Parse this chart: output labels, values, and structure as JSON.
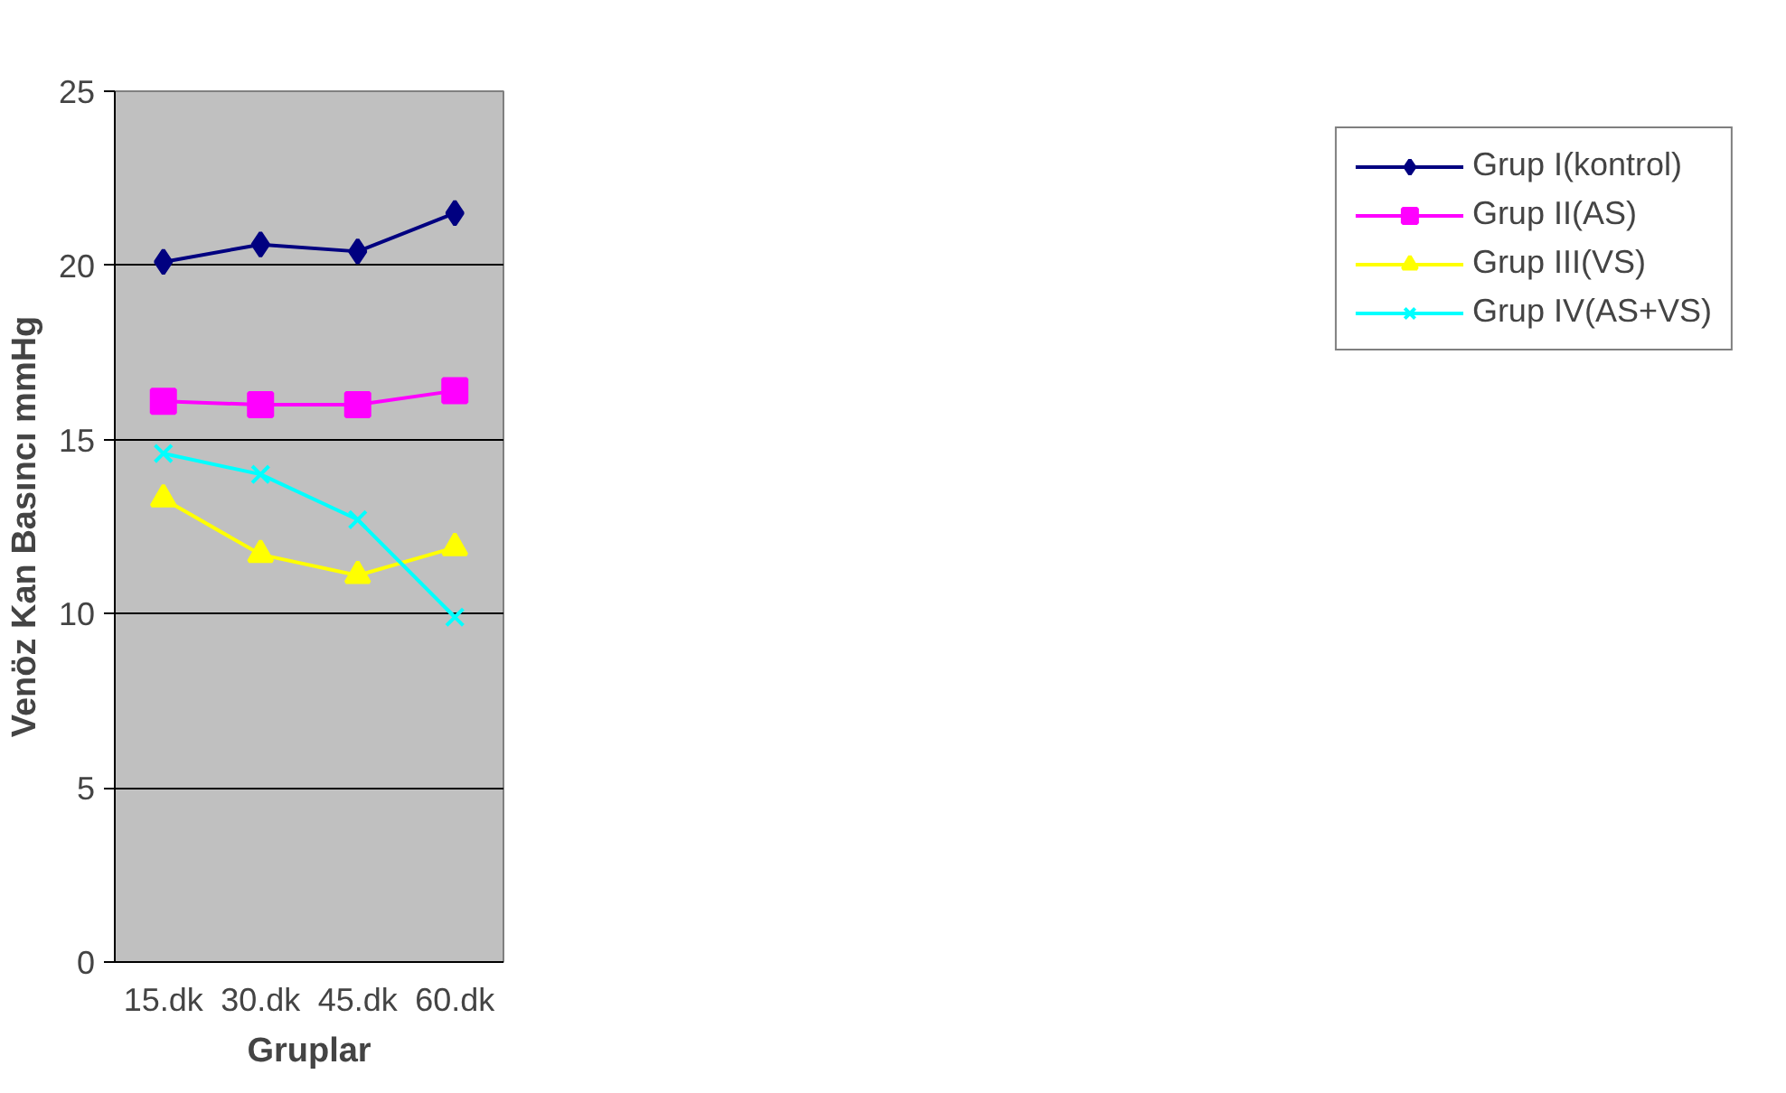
{
  "chart_data": {
    "type": "line",
    "xlabel": "Gruplar",
    "ylabel": "Venöz Kan Basıncı mmHg",
    "categories": [
      "15.dk",
      "30.dk",
      "45.dk",
      "60.dk"
    ],
    "ylim": [
      0,
      25
    ],
    "yticks": [
      0,
      5,
      10,
      15,
      20,
      25
    ],
    "grid": "y",
    "legend": "right",
    "series": [
      {
        "name": "Grup I(kontrol)",
        "color": "#000080",
        "marker": "diamond",
        "values": [
          20.1,
          20.6,
          20.4,
          21.5
        ]
      },
      {
        "name": "Grup II(AS)",
        "color": "#ff00ff",
        "marker": "square",
        "values": [
          16.1,
          16.0,
          16.0,
          16.4
        ]
      },
      {
        "name": "Grup III(VS)",
        "color": "#ffff00",
        "marker": "triangle",
        "values": [
          13.3,
          11.7,
          11.1,
          11.9
        ]
      },
      {
        "name": "Grup IV(AS+VS)",
        "color": "#00ffff",
        "marker": "cross",
        "values": [
          14.6,
          14.0,
          12.7,
          9.9
        ]
      }
    ]
  }
}
